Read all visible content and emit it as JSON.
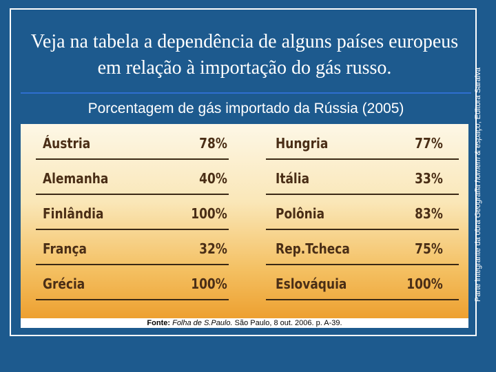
{
  "title": "Veja na tabela a dependência de alguns países europeus em relação à importação do gás russo.",
  "subtitle": "Porcentagem de gás importado da Rússia (2005)",
  "table": {
    "rows": [
      [
        "Áustria",
        "78%",
        "Hungria",
        "77%"
      ],
      [
        "Alemanha",
        "40%",
        "Itália",
        "33%"
      ],
      [
        "Finlândia",
        "100%",
        "Polônia",
        "83%"
      ],
      [
        "França",
        "32%",
        "Rep.Tcheca",
        "75%"
      ],
      [
        "Grécia",
        "100%",
        "Eslováquia",
        "100%"
      ]
    ]
  },
  "source": {
    "label": "Fonte:",
    "publication": "Folha de S.Paulo.",
    "details": "São Paulo, 8 out. 2006. p. A-39."
  },
  "side_note": {
    "before": "Parte integrante da obra",
    "work": "Geografia homem & espaço",
    "after": ", Editora Saraiva"
  }
}
